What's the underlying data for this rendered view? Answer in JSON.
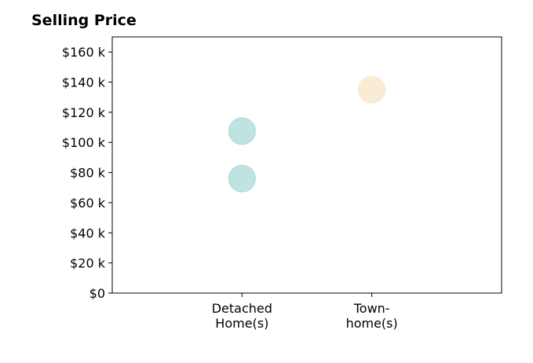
{
  "chart_data": {
    "type": "scatter",
    "title": "Selling Price",
    "xlabel": "",
    "ylabel": "",
    "categories": [
      [
        "Detached",
        "Home(s)"
      ],
      [
        "Town-",
        "home(s)"
      ]
    ],
    "xlim": [
      0,
      3
    ],
    "ylim": [
      0,
      170
    ],
    "yticks": [
      0,
      20,
      40,
      60,
      80,
      100,
      120,
      140,
      160
    ],
    "ytick_labels": [
      "$0",
      "$20 k",
      "$40 k",
      "$60 k",
      "$80 k",
      "$100 k",
      "$120 k",
      "$140 k",
      "$160 k"
    ],
    "points": [
      {
        "category_index": 0,
        "y": 107.5,
        "color": "#a8dad5"
      },
      {
        "category_index": 0,
        "y": 76,
        "color": "#a8dad5"
      },
      {
        "category_index": 1,
        "y": 135,
        "color": "#f8e6c6"
      }
    ],
    "grid": false,
    "legend": "none"
  }
}
